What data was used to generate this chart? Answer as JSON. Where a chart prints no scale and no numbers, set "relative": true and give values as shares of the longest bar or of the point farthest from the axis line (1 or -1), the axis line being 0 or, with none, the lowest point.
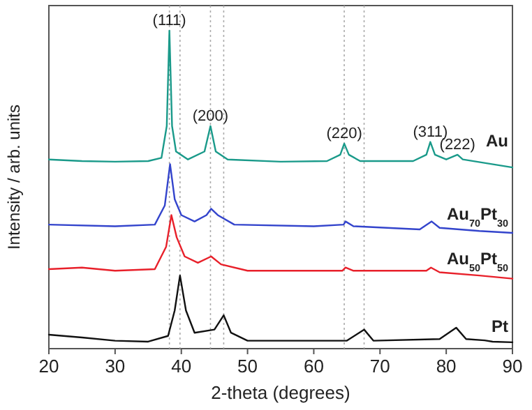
{
  "chart_data": {
    "type": "line",
    "xlabel": "2-theta (degrees)",
    "ylabel": "Intensity / arb. units",
    "relative": true,
    "xlim": [
      20,
      90
    ],
    "xticks": [
      20,
      30,
      40,
      50,
      60,
      70,
      80,
      90
    ],
    "grid": false,
    "series": [
      {
        "name": "Au",
        "color": "#1a9a8a",
        "x": [
          20,
          25,
          30,
          35,
          37,
          37.8,
          38.2,
          38.6,
          39.2,
          41,
          43.5,
          44.4,
          45.2,
          47,
          55,
          62,
          64,
          64.6,
          65.3,
          67,
          75,
          77,
          77.6,
          78.3,
          80,
          81.7,
          82.5,
          90
        ],
        "values": [
          0.595,
          0.59,
          0.588,
          0.59,
          0.6,
          0.7,
          1,
          0.7,
          0.62,
          0.595,
          0.62,
          0.7,
          0.62,
          0.595,
          0.588,
          0.59,
          0.61,
          0.645,
          0.61,
          0.59,
          0.59,
          0.61,
          0.65,
          0.61,
          0.595,
          0.61,
          0.595,
          0.57
        ]
      },
      {
        "name": "Au$_{70}$Pt$_{30}$",
        "color": "#3344cc",
        "x": [
          20,
          30,
          36,
          37.5,
          38.3,
          39,
          40,
          42,
          43.8,
          44.5,
          45.5,
          48,
          60,
          64.5,
          64.8,
          66,
          76,
          77.8,
          79,
          85,
          90
        ],
        "values": [
          0.39,
          0.385,
          0.39,
          0.45,
          0.58,
          0.47,
          0.42,
          0.4,
          0.42,
          0.44,
          0.42,
          0.39,
          0.385,
          0.39,
          0.4,
          0.385,
          0.375,
          0.4,
          0.38,
          0.37,
          0.364
        ]
      },
      {
        "name": "Au$_{50}$Pt$_{50}$",
        "color": "#e8202a",
        "x": [
          20,
          25,
          30,
          36,
          37.7,
          38.5,
          39.3,
          40.5,
          42.5,
          44.5,
          46,
          50,
          64.3,
          64.8,
          66,
          77,
          77.7,
          79,
          85,
          90
        ],
        "values": [
          0.25,
          0.255,
          0.245,
          0.25,
          0.32,
          0.42,
          0.35,
          0.29,
          0.27,
          0.29,
          0.265,
          0.245,
          0.245,
          0.255,
          0.245,
          0.245,
          0.255,
          0.24,
          0.23,
          0.22
        ]
      },
      {
        "name": "Pt",
        "color": "#111111",
        "x": [
          20,
          25,
          30,
          35,
          38,
          39,
          39.8,
          40.7,
          42,
          45,
          46.4,
          47.5,
          50,
          65,
          67.6,
          69,
          79,
          81.5,
          83,
          85.8,
          87,
          90
        ],
        "values": [
          0.044,
          0.035,
          0.025,
          0.022,
          0.04,
          0.12,
          0.23,
          0.12,
          0.05,
          0.06,
          0.105,
          0.05,
          0.025,
          0.025,
          0.06,
          0.025,
          0.03,
          0.066,
          0.03,
          0.026,
          0.022,
          0.02
        ]
      }
    ],
    "ref_lines": [
      {
        "axis": "x",
        "value": 38.2,
        "color": "#aaaaaa",
        "line_style": "dotted"
      },
      {
        "axis": "x",
        "value": 39.8,
        "color": "#aaaaaa",
        "line_style": "dotted"
      },
      {
        "axis": "x",
        "value": 44.4,
        "color": "#aaaaaa",
        "line_style": "dotted"
      },
      {
        "axis": "x",
        "value": 46.4,
        "color": "#aaaaaa",
        "line_style": "dotted"
      },
      {
        "axis": "x",
        "value": 64.6,
        "color": "#aaaaaa",
        "line_style": "dotted"
      },
      {
        "axis": "x",
        "value": 67.6,
        "color": "#aaaaaa",
        "line_style": "dotted"
      }
    ],
    "annotations": [
      {
        "text": "(111)",
        "x": 38.2,
        "y": 1
      },
      {
        "text": "(200)",
        "x": 44.4,
        "y": 0.7
      },
      {
        "text": "(220)",
        "x": 64.6,
        "y": 0.645
      },
      {
        "text": "(311)",
        "x": 77.6,
        "y": 0.65
      },
      {
        "text": "(222)",
        "x": 81.7,
        "y": 0.61
      }
    ]
  }
}
